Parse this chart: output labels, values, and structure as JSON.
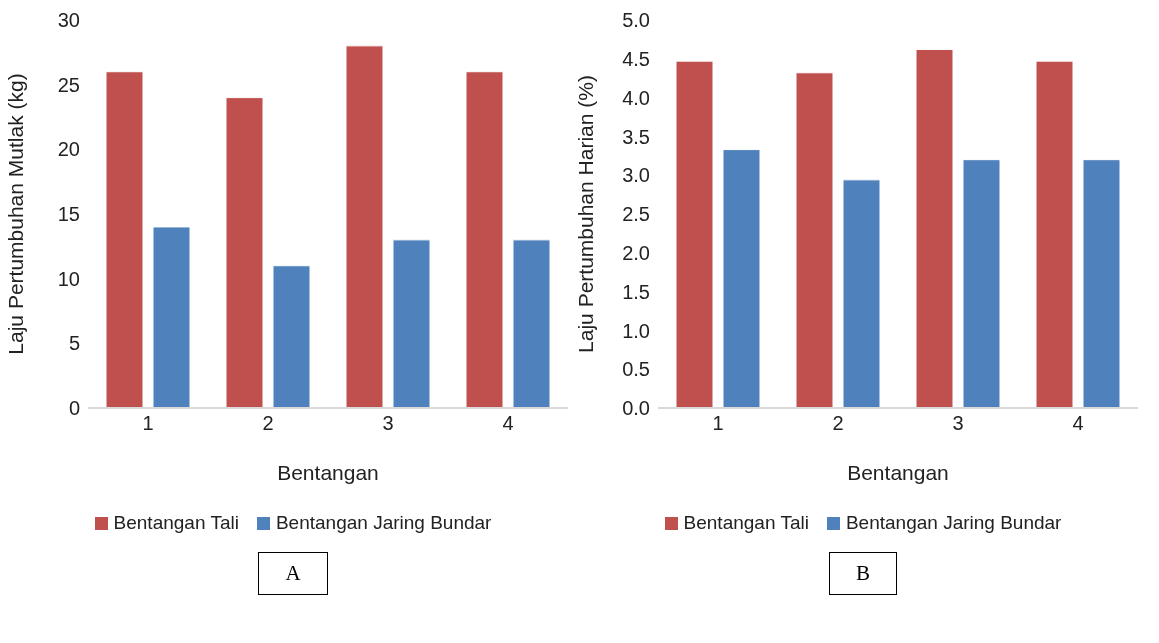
{
  "chart_data": [
    {
      "type": "bar",
      "xlabel": "Bentangan",
      "ylabel": "Laju Pertumbuhan  Mutlak (kg)",
      "categories": [
        "1",
        "2",
        "3",
        "4"
      ],
      "series": [
        {
          "name": "Bentangan Tali",
          "color": "#c0504d",
          "values": [
            26,
            24,
            28,
            26
          ]
        },
        {
          "name": "Bentangan Jaring Bundar",
          "color": "#4f81bd",
          "values": [
            14,
            11,
            13,
            13
          ]
        }
      ],
      "ylim": [
        0,
        30
      ],
      "yticks": [
        0,
        5,
        10,
        15,
        20,
        25,
        30
      ],
      "legend": "bottom",
      "annotations": [
        "A"
      ]
    },
    {
      "type": "bar",
      "xlabel": "Bentangan",
      "ylabel": "Laju Pertumbuhan  Harian (%)",
      "categories": [
        "1",
        "2",
        "3",
        "4"
      ],
      "series": [
        {
          "name": "Bentangan Tali",
          "color": "#c0504d",
          "values": [
            4.47,
            4.32,
            4.62,
            4.47
          ]
        },
        {
          "name": "Bentangan Jaring Bundar",
          "color": "#4f81bd",
          "values": [
            3.33,
            2.94,
            3.2,
            3.2
          ]
        }
      ],
      "ylim": [
        0,
        5
      ],
      "yticks": [
        {
          "value": 0,
          "label": "0.0"
        },
        {
          "value": 0.5,
          "label": "0.5"
        },
        {
          "value": 1,
          "label": "1.0"
        },
        {
          "value": 1.5,
          "label": "1.5"
        },
        {
          "value": 2,
          "label": "2.0"
        },
        {
          "value": 2.5,
          "label": "2.5"
        },
        {
          "value": 3,
          "label": "3.0"
        },
        {
          "value": 3.5,
          "label": "3.5"
        },
        {
          "value": 4,
          "label": "4.0"
        },
        {
          "value": 4.5,
          "label": "4.5"
        },
        {
          "value": 5,
          "label": "5.0"
        }
      ],
      "legend": "bottom",
      "annotations": [
        "B"
      ]
    }
  ]
}
